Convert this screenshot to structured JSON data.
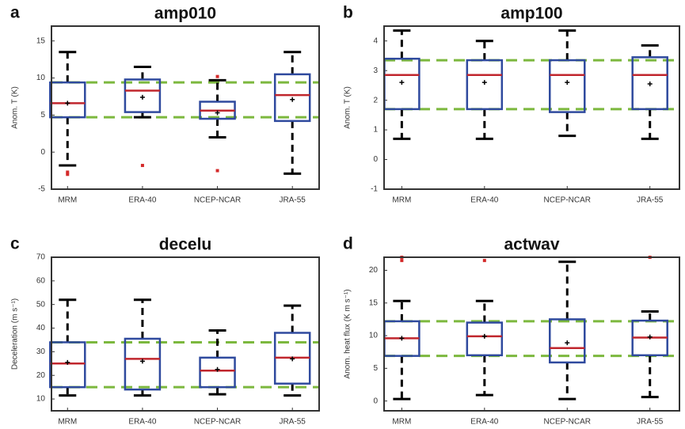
{
  "chart_data": [
    {
      "type": "box",
      "label": "a",
      "title": "amp010",
      "ylabel": "Anom. T (K)",
      "categories": [
        "MRM",
        "ERA-40",
        "NCEP-NCAR",
        "JRA-55"
      ],
      "ylim": [
        -5,
        17
      ],
      "yticks": [
        -5,
        0,
        5,
        10,
        15
      ],
      "reference_lines": [
        4.7,
        9.4
      ],
      "box_color": "#2f4a9e",
      "median_color": "#c0262d",
      "whisker_color": "#000000",
      "outlier_color": "#d42a2a",
      "reference_color": "#7cb83e",
      "boxes": [
        {
          "whisker_low": -1.8,
          "q1": 4.7,
          "median": 6.6,
          "q3": 9.4,
          "whisker_high": 13.5,
          "mean": 6.6,
          "outliers": [
            -2.7,
            -3.0
          ]
        },
        {
          "whisker_low": 4.7,
          "q1": 5.4,
          "median": 8.3,
          "q3": 9.8,
          "whisker_high": 11.5,
          "mean": 7.4,
          "outliers": [
            -1.8
          ]
        },
        {
          "whisker_low": 2.0,
          "q1": 4.5,
          "median": 5.6,
          "q3": 6.8,
          "whisker_high": 9.7,
          "mean": 5.3,
          "outliers": [
            -2.5,
            10.2
          ]
        },
        {
          "whisker_low": -2.9,
          "q1": 4.2,
          "median": 7.7,
          "q3": 10.5,
          "whisker_high": 13.5,
          "mean": 7.1,
          "outliers": []
        }
      ]
    },
    {
      "type": "box",
      "label": "b",
      "title": "amp100",
      "ylabel": "Anom. T (K)",
      "categories": [
        "MRM",
        "ERA-40",
        "NCEP-NCAR",
        "JRA-55"
      ],
      "ylim": [
        -1,
        4.5
      ],
      "yticks": [
        -1,
        0,
        1,
        2,
        3,
        4
      ],
      "reference_lines": [
        1.7,
        3.35
      ],
      "box_color": "#2f4a9e",
      "median_color": "#c0262d",
      "whisker_color": "#000000",
      "outlier_color": "#d42a2a",
      "reference_color": "#7cb83e",
      "boxes": [
        {
          "whisker_low": 0.7,
          "q1": 1.7,
          "median": 2.85,
          "q3": 3.4,
          "whisker_high": 4.35,
          "mean": 2.6,
          "outliers": []
        },
        {
          "whisker_low": 0.7,
          "q1": 1.7,
          "median": 2.85,
          "q3": 3.35,
          "whisker_high": 4.0,
          "mean": 2.6,
          "outliers": []
        },
        {
          "whisker_low": 0.8,
          "q1": 1.6,
          "median": 2.85,
          "q3": 3.35,
          "whisker_high": 4.35,
          "mean": 2.6,
          "outliers": []
        },
        {
          "whisker_low": 0.7,
          "q1": 1.7,
          "median": 2.85,
          "q3": 3.45,
          "whisker_high": 3.85,
          "mean": 2.55,
          "outliers": []
        }
      ]
    },
    {
      "type": "box",
      "label": "c",
      "title": "decelu",
      "ylabel": "Deceleration (m s⁻¹)",
      "categories": [
        "MRM",
        "ERA-40",
        "NCEP-NCAR",
        "JRA-55"
      ],
      "ylim": [
        5,
        70
      ],
      "yticks": [
        10,
        20,
        30,
        40,
        50,
        60,
        70
      ],
      "reference_lines": [
        15,
        34
      ],
      "box_color": "#2f4a9e",
      "median_color": "#c0262d",
      "whisker_color": "#000000",
      "outlier_color": "#d42a2a",
      "reference_color": "#7cb83e",
      "boxes": [
        {
          "whisker_low": 11.5,
          "q1": 15,
          "median": 25,
          "q3": 34,
          "whisker_high": 52,
          "mean": 25.5,
          "outliers": []
        },
        {
          "whisker_low": 11.5,
          "q1": 14,
          "median": 27,
          "q3": 35.5,
          "whisker_high": 52,
          "mean": 26,
          "outliers": []
        },
        {
          "whisker_low": 12,
          "q1": 15,
          "median": 22,
          "q3": 27.5,
          "whisker_high": 39,
          "mean": 22.5,
          "outliers": []
        },
        {
          "whisker_low": 11.5,
          "q1": 16.5,
          "median": 27.5,
          "q3": 38,
          "whisker_high": 49.5,
          "mean": 27,
          "outliers": []
        }
      ]
    },
    {
      "type": "box",
      "label": "d",
      "title": "actwav",
      "ylabel": "Anom. heat flux (K m s⁻¹)",
      "categories": [
        "MRM",
        "ERA-40",
        "NCEP-NCAR",
        "JRA-55"
      ],
      "ylim": [
        -1.5,
        22
      ],
      "yticks": [
        0,
        5,
        10,
        15,
        20
      ],
      "reference_lines": [
        6.9,
        12.2
      ],
      "box_color": "#2f4a9e",
      "median_color": "#c0262d",
      "whisker_color": "#000000",
      "outlier_color": "#d42a2a",
      "reference_color": "#7cb83e",
      "boxes": [
        {
          "whisker_low": 0.3,
          "q1": 6.9,
          "median": 9.6,
          "q3": 12.2,
          "whisker_high": 15.3,
          "mean": 9.6,
          "outliers": [
            21.5,
            22
          ]
        },
        {
          "whisker_low": 0.9,
          "q1": 7.0,
          "median": 9.9,
          "q3": 12,
          "whisker_high": 15.3,
          "mean": 9.9,
          "outliers": [
            21.5
          ]
        },
        {
          "whisker_low": 0.3,
          "q1": 5.9,
          "median": 8.1,
          "q3": 12.5,
          "whisker_high": 21.3,
          "mean": 8.9,
          "outliers": []
        },
        {
          "whisker_low": 0.6,
          "q1": 7.0,
          "median": 9.7,
          "q3": 12.3,
          "whisker_high": 13.7,
          "mean": 9.8,
          "outliers": [
            22
          ]
        }
      ]
    }
  ]
}
